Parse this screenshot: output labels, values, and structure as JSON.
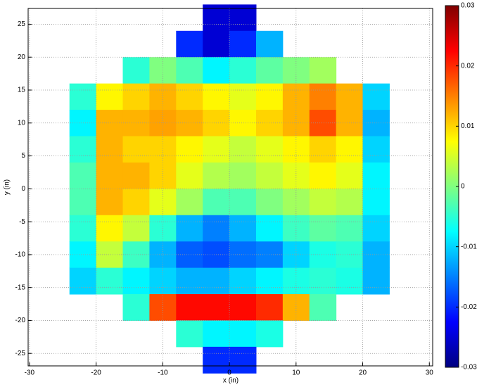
{
  "chart_data": {
    "type": "heatmap",
    "xlabel": "x (in)",
    "ylabel": "y (in)",
    "x": [
      -22,
      -18,
      -14,
      -10,
      -6,
      -2,
      2,
      6,
      10,
      14,
      18,
      22
    ],
    "y": [
      26,
      22,
      18,
      14,
      10,
      6,
      2,
      -2,
      -6,
      -10,
      -14,
      -18,
      -22,
      -26
    ],
    "z": [
      [
        null,
        null,
        null,
        null,
        null,
        -0.025,
        -0.025,
        null,
        null,
        null,
        null,
        null
      ],
      [
        null,
        null,
        null,
        null,
        -0.02,
        -0.025,
        -0.02,
        -0.012,
        null,
        null,
        null,
        null
      ],
      [
        null,
        null,
        -0.005,
        0,
        -0.003,
        -0.008,
        -0.005,
        -0.002,
        0,
        0.002,
        null,
        null
      ],
      [
        -0.005,
        0.008,
        0.01,
        0.012,
        0.01,
        0.008,
        0.006,
        0.008,
        0.012,
        0.015,
        0.012,
        -0.01
      ],
      [
        -0.008,
        0.012,
        0.012,
        0.013,
        0.012,
        0.01,
        0.008,
        0.01,
        0.012,
        0.018,
        0.012,
        -0.012
      ],
      [
        -0.005,
        0.012,
        0.01,
        0.01,
        0.008,
        0.006,
        0.004,
        0.006,
        0.008,
        0.01,
        0.008,
        -0.01
      ],
      [
        -0.003,
        0.012,
        0.012,
        0.01,
        0.006,
        0.003,
        0.002,
        0.004,
        0.006,
        0.008,
        0.006,
        -0.008
      ],
      [
        -0.003,
        0.012,
        0.01,
        0.006,
        0.002,
        -0.003,
        -0.003,
        0,
        0.002,
        0.004,
        0.003,
        -0.008
      ],
      [
        -0.005,
        0.008,
        0.004,
        -0.005,
        -0.012,
        -0.015,
        -0.012,
        -0.008,
        -0.004,
        -0.002,
        -0.003,
        -0.01
      ],
      [
        -0.008,
        0.004,
        -0.004,
        -0.012,
        -0.017,
        -0.018,
        -0.016,
        -0.015,
        -0.01,
        -0.006,
        -0.005,
        -0.012
      ],
      [
        -0.01,
        -0.005,
        -0.008,
        -0.01,
        -0.012,
        -0.012,
        -0.01,
        -0.008,
        -0.006,
        -0.005,
        -0.006,
        -0.012
      ],
      [
        null,
        null,
        -0.005,
        0.018,
        0.022,
        0.022,
        0.022,
        0.02,
        0.012,
        -0.003,
        null,
        null
      ],
      [
        null,
        null,
        null,
        null,
        -0.005,
        -0.008,
        -0.008,
        -0.006,
        null,
        null,
        null,
        null
      ],
      [
        null,
        null,
        null,
        null,
        null,
        -0.02,
        -0.02,
        null,
        null,
        null,
        null,
        null
      ]
    ],
    "xlim": [
      -30.2,
      30.5
    ],
    "ylim": [
      -26.9,
      27.4
    ],
    "xticks": [
      -30,
      -20,
      -10,
      0,
      10,
      20,
      30
    ],
    "yticks": [
      -25,
      -20,
      -15,
      -10,
      -5,
      0,
      5,
      10,
      15,
      20,
      25
    ],
    "clim": [
      -0.03,
      0.03
    ],
    "cticks": [
      -0.03,
      -0.02,
      -0.01,
      0,
      0.01,
      0.02,
      0.03
    ],
    "colormap": "jet",
    "grid": true
  }
}
